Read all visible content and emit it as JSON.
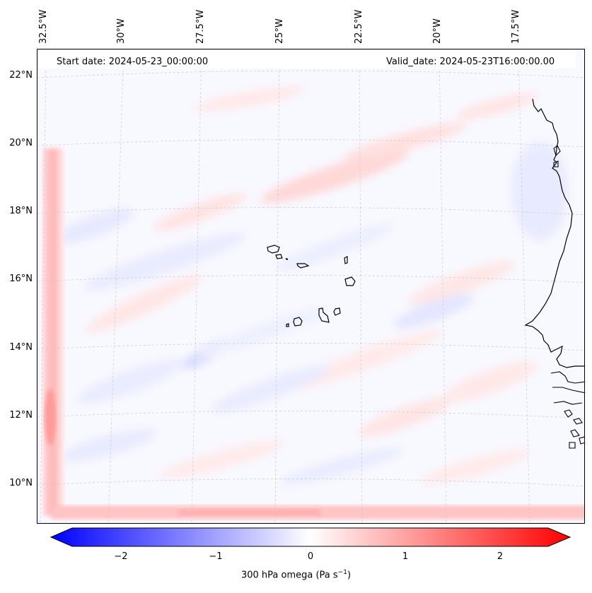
{
  "map": {
    "title_left": "Start date: 2024-05-23_00:00:00",
    "title_right": "Valid_date: 2024-05-23T16:00:00.00",
    "lon_labels": [
      "32.5°W",
      "30°W",
      "27.5°W",
      "25°W",
      "22.5°W",
      "20°W",
      "17.5°W"
    ],
    "lat_labels": [
      "22°N",
      "20°N",
      "18°N",
      "16°N",
      "14°N",
      "12°N",
      "10°N"
    ],
    "features": [
      "Cape Verde islands",
      "West African coastline"
    ],
    "field": "300 hPa omega"
  },
  "colorbar": {
    "label": "300 hPa omega (Pa s",
    "label_sup": "−1",
    "label_close": ")",
    "ticks": [
      "−2",
      "−1",
      "0",
      "1",
      "2"
    ],
    "range": [
      -2.5,
      2.5
    ],
    "colors": {
      "negative": "#0000ff",
      "zero": "#ffffff",
      "positive": "#ff0000"
    }
  }
}
